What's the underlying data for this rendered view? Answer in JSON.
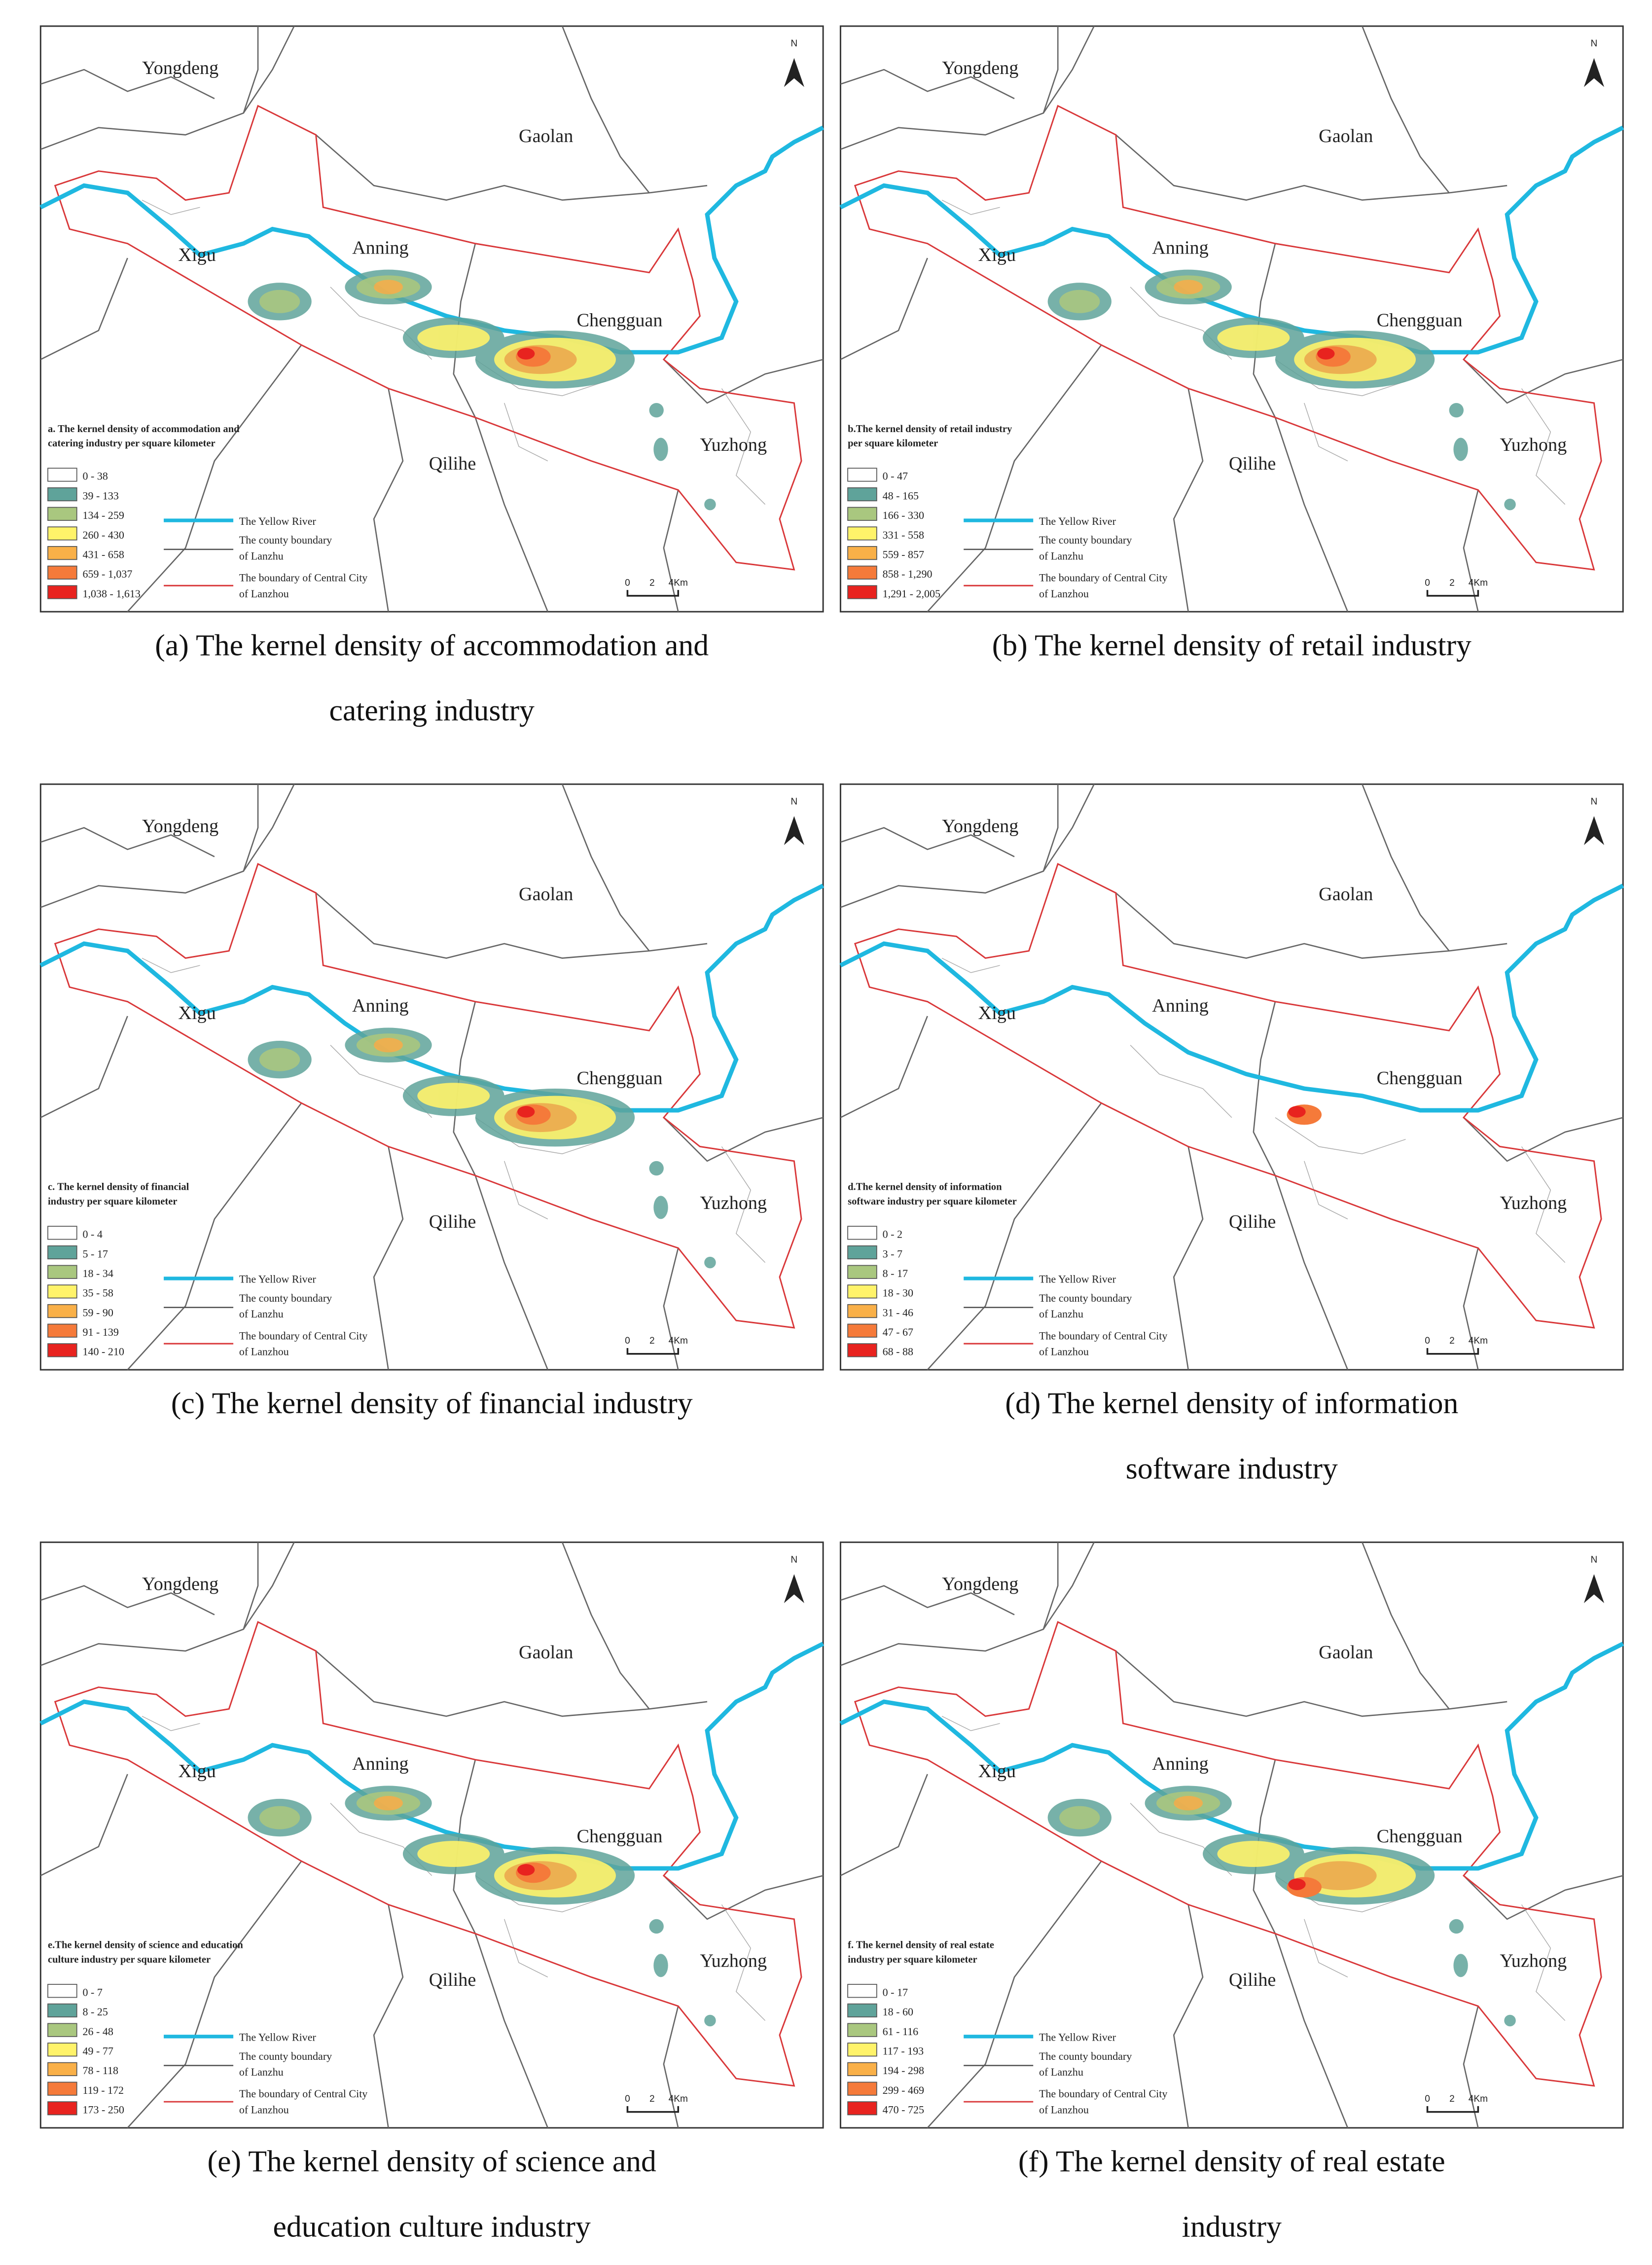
{
  "panels": [
    {
      "places": [
        "Yongdeng",
        "Gaolan",
        "Anning",
        "Xigu",
        "Chengguan",
        "Yuzhong",
        "Qilihe"
      ],
      "north": "N",
      "legend": {
        "title": [
          "a. The kernel density of accommodation and",
          "catering  industry per square kilometer"
        ],
        "classes": [
          "0 - 38",
          "39 - 133",
          "134 - 259",
          "260 - 430",
          "431 - 658",
          "659 - 1,037",
          "1,038 - 1,613"
        ],
        "river": "The Yellow River",
        "county": [
          "The county boundary",
          "of Lanzhu"
        ],
        "central": [
          "The boundary of Central City",
          "of Lanzhou"
        ]
      },
      "scale": [
        "0",
        "2",
        "4Km"
      ],
      "caption": [
        "(a) The kernel density of accommodation and",
        "catering industry"
      ]
    },
    {
      "places": [
        "Yongdeng",
        "Gaolan",
        "Anning",
        "Xigu",
        "Chengguan",
        "Yuzhong",
        "Qilihe"
      ],
      "north": "N",
      "legend": {
        "title": [
          "b.The kernel density of retail industry",
          "per square kilometer"
        ],
        "classes": [
          "0 - 47",
          "48 - 165",
          "166 - 330",
          "331 - 558",
          "559 - 857",
          "858 - 1,290",
          "1,291 - 2,005"
        ],
        "river": "The Yellow River",
        "county": [
          "The county boundary",
          "of Lanzhu"
        ],
        "central": [
          "The boundary of Central City",
          "of Lanzhou"
        ]
      },
      "scale": [
        "0",
        "2",
        "4Km"
      ],
      "caption": [
        "(b) The kernel density of retail industry"
      ]
    },
    {
      "places": [
        "Yongdeng",
        "Gaolan",
        "Anning",
        "Xigu",
        "Chengguan",
        "Yuzhong",
        "Qilihe"
      ],
      "north": "N",
      "legend": {
        "title": [
          "c. The kernel density of financial",
          "industry per square kilometer"
        ],
        "classes": [
          "0 - 4",
          "5 - 17",
          "18 - 34",
          "35 - 58",
          "59 - 90",
          "91 - 139",
          "140 - 210"
        ],
        "river": "The Yellow River",
        "county": [
          "The county boundary",
          "of Lanzhu"
        ],
        "central": [
          "The boundary of Central City",
          "of Lanzhou"
        ]
      },
      "scale": [
        "0",
        "2",
        "4Km"
      ],
      "caption": [
        "(c) The kernel density of financial industry"
      ]
    },
    {
      "places": [
        "Yongdeng",
        "Gaolan",
        "Anning",
        "Xigu",
        "Chengguan",
        "Yuzhong",
        "Qilihe"
      ],
      "north": "N",
      "legend": {
        "title": [
          "d.The kernel density of information",
          "software industry per square kilometer"
        ],
        "classes": [
          "0 - 2",
          "3 - 7",
          "8 - 17",
          "18 - 30",
          "31 - 46",
          "47 - 67",
          "68 - 88"
        ],
        "river": "The Yellow River",
        "county": [
          "The county boundary",
          "of Lanzhu"
        ],
        "central": [
          "The boundary of Central City",
          "of Lanzhou"
        ]
      },
      "scale": [
        "0",
        "2",
        "4Km"
      ],
      "caption": [
        "(d) The kernel density of information",
        "software industry"
      ]
    },
    {
      "places": [
        "Yongdeng",
        "Gaolan",
        "Anning",
        "Xigu",
        "Chengguan",
        "Yuzhong",
        "Qilihe"
      ],
      "north": "N",
      "legend": {
        "title": [
          "e.The kernel density of science and education",
          "culture industry per square kilometer"
        ],
        "classes": [
          "0 - 7",
          "8 - 25",
          "26 - 48",
          "49 - 77",
          "78 - 118",
          "119 - 172",
          "173 - 250"
        ],
        "river": "The Yellow River",
        "county": [
          "The county boundary",
          "of Lanzhu"
        ],
        "central": [
          "The boundary of Central City",
          "of Lanzhou"
        ]
      },
      "scale": [
        "0",
        "2",
        "4Km"
      ],
      "caption": [
        "(e) The kernel density of science and",
        "education culture industry"
      ]
    },
    {
      "places": [
        "Yongdeng",
        "Gaolan",
        "Anning",
        "Xigu",
        "Chengguan",
        "Yuzhong",
        "Qilihe"
      ],
      "north": "N",
      "legend": {
        "title": [
          "f. The kernel density of real estate",
          "industry per square kilometer"
        ],
        "classes": [
          "0 - 17",
          "18 - 60",
          "61 - 116",
          "117 - 193",
          "194 - 298",
          "299 - 469",
          "470 - 725"
        ],
        "river": "The Yellow River",
        "county": [
          "The county boundary",
          "of Lanzhu"
        ],
        "central": [
          "The boundary of Central City",
          "of Lanzhou"
        ]
      },
      "scale": [
        "0",
        "2",
        "4Km"
      ],
      "caption": [
        "(f) The kernel density of real estate",
        "industry"
      ]
    }
  ]
}
